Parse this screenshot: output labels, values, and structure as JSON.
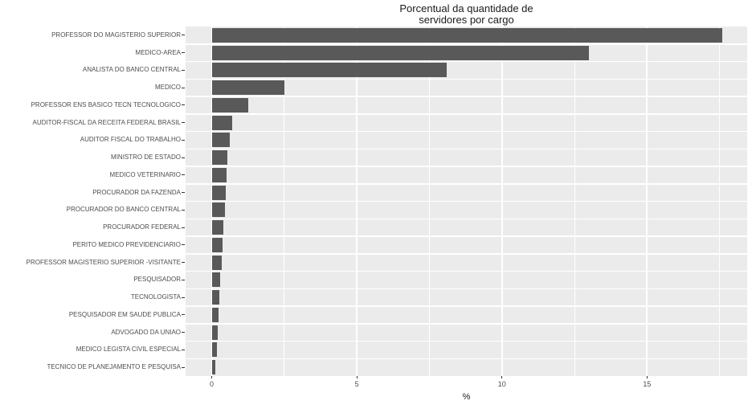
{
  "chart_data": {
    "type": "bar",
    "orientation": "horizontal",
    "title": "Porcentual da quantidade de\nservidores por cargo",
    "xlabel": "%",
    "ylabel": "",
    "categories": [
      "PROFESSOR DO MAGISTERIO SUPERIOR",
      "MEDICO-AREA",
      "ANALISTA DO BANCO CENTRAL",
      "MEDICO",
      "PROFESSOR ENS BASICO TECN TECNOLOGICO",
      "AUDITOR-FISCAL DA RECEITA FEDERAL BRASIL",
      "AUDITOR FISCAL DO TRABALHO",
      "MINISTRO DE ESTADO",
      "MEDICO VETERINARIO",
      "PROCURADOR DA FAZENDA",
      "PROCURADOR DO BANCO CENTRAL",
      "PROCURADOR FEDERAL",
      "PERITO MEDICO PREVIDENCIARIO",
      "PROFESSOR MAGISTERIO SUPERIOR -VISITANTE",
      "PESQUISADOR",
      "TECNOLOGISTA",
      "PESQUISADOR EM SAUDE PUBLICA",
      "ADVOGADO DA UNIAO",
      "MEDICO LEGISTA CIVIL ESPECIAL",
      "TECNICO DE PLANEJAMENTO E PESQUISA"
    ],
    "values": [
      17.6,
      13.0,
      8.1,
      2.5,
      1.25,
      0.7,
      0.62,
      0.55,
      0.5,
      0.48,
      0.46,
      0.41,
      0.38,
      0.35,
      0.28,
      0.25,
      0.23,
      0.2,
      0.17,
      0.12
    ],
    "x_axis": {
      "range": [
        -0.9,
        18.45
      ],
      "major_ticks": [
        0,
        5,
        10,
        15
      ],
      "minor_ticks": [
        2.5,
        7.5,
        12.5,
        17.5
      ]
    },
    "grid": "on",
    "legend": "none",
    "colors": {
      "bar": "#595959",
      "panel_bg": "#ebebeb",
      "grid": "#ffffff",
      "axis_text": "#4d4d4d",
      "title_text": "#1a1a1a",
      "tick_mark": "#333333"
    }
  }
}
